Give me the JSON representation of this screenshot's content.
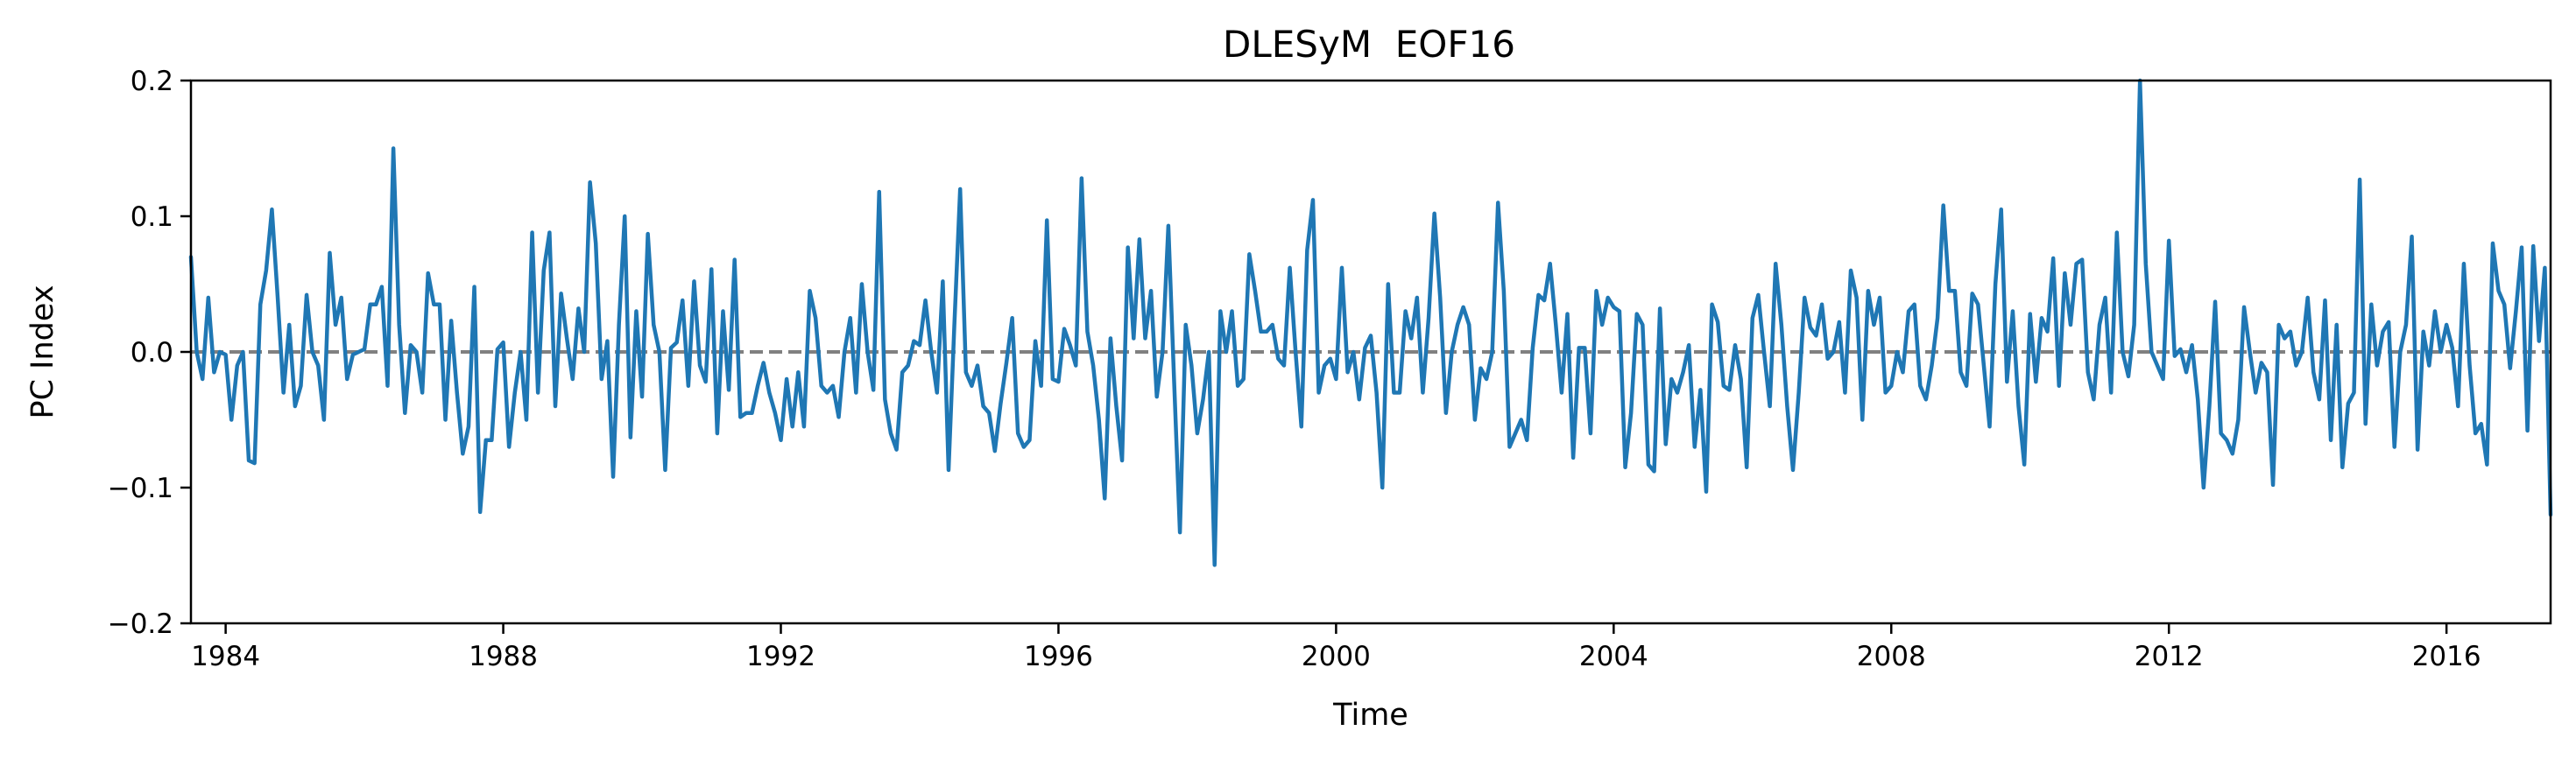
{
  "chart_data": {
    "type": "line",
    "title": "DLESyM  EOF16",
    "xlabel": "Time",
    "ylabel": "PC Index",
    "xlim": [
      1983.5,
      2017.5
    ],
    "ylim": [
      -0.2,
      0.2
    ],
    "x_ticks": [
      1984,
      1988,
      1992,
      1996,
      2000,
      2004,
      2008,
      2012,
      2016
    ],
    "y_ticks": [
      -0.2,
      -0.1,
      0.0,
      0.1,
      0.2
    ],
    "y_tick_labels": [
      "−0.2",
      "−0.1",
      "0.0",
      "0.1",
      "0.2"
    ],
    "grid": false,
    "reference_line": {
      "y": 0.0,
      "style": "dashed",
      "color": "#808080"
    },
    "series": [
      {
        "color": "#1f77b4",
        "x_start": 1983.5,
        "x_step": 0.0833333,
        "values": [
          0.07,
          0.0,
          -0.02,
          0.04,
          -0.015,
          0.0,
          -0.002,
          -0.05,
          -0.01,
          0.0,
          -0.08,
          -0.082,
          0.035,
          0.06,
          0.105,
          0.04,
          -0.03,
          0.02,
          -0.04,
          -0.025,
          0.042,
          0.0,
          -0.01,
          -0.05,
          0.073,
          0.02,
          0.04,
          -0.02,
          -0.002,
          0.0,
          0.002,
          0.035,
          0.035,
          0.048,
          -0.025,
          0.15,
          0.02,
          -0.045,
          0.005,
          0.0,
          -0.03,
          0.058,
          0.035,
          0.035,
          -0.05,
          0.023,
          -0.03,
          -0.075,
          -0.055,
          0.048,
          -0.118,
          -0.065,
          -0.065,
          0.002,
          0.007,
          -0.07,
          -0.03,
          0.0,
          -0.05,
          0.088,
          -0.03,
          0.06,
          0.088,
          -0.04,
          0.043,
          0.01,
          -0.02,
          0.032,
          0.0,
          0.125,
          0.08,
          -0.02,
          0.008,
          -0.092,
          0.02,
          0.1,
          -0.063,
          0.03,
          -0.033,
          0.087,
          0.02,
          0.0,
          -0.087,
          0.003,
          0.007,
          0.038,
          -0.025,
          0.052,
          -0.01,
          -0.022,
          0.061,
          -0.06,
          0.03,
          -0.028,
          0.068,
          -0.048,
          -0.045,
          -0.045,
          -0.025,
          -0.008,
          -0.03,
          -0.045,
          -0.065,
          -0.02,
          -0.055,
          -0.015,
          -0.055,
          0.045,
          0.025,
          -0.025,
          -0.03,
          -0.025,
          -0.048,
          0.0,
          0.025,
          -0.03,
          0.05,
          0.0,
          -0.028,
          0.118,
          -0.035,
          -0.06,
          -0.072,
          -0.015,
          -0.01,
          0.008,
          0.005,
          0.038,
          0.0,
          -0.03,
          0.052,
          -0.087,
          0.02,
          0.12,
          -0.015,
          -0.025,
          -0.01,
          -0.04,
          -0.045,
          -0.073,
          -0.038,
          -0.008,
          0.025,
          -0.06,
          -0.07,
          -0.065,
          0.008,
          -0.025,
          0.097,
          -0.02,
          -0.022,
          0.017,
          0.005,
          -0.01,
          0.128,
          0.015,
          -0.01,
          -0.05,
          -0.108,
          0.01,
          -0.04,
          -0.08,
          0.077,
          0.01,
          0.083,
          0.01,
          0.045,
          -0.033,
          0.0,
          0.093,
          -0.022,
          -0.133,
          0.02,
          -0.01,
          -0.06,
          -0.035,
          0.0,
          -0.157,
          0.03,
          0.0,
          0.03,
          -0.025,
          -0.02,
          0.072,
          0.045,
          0.015,
          0.015,
          0.02,
          -0.005,
          -0.01,
          0.062,
          0.0,
          -0.055,
          0.075,
          0.112,
          -0.03,
          -0.01,
          -0.005,
          -0.02,
          0.062,
          -0.015,
          0.0,
          -0.035,
          0.003,
          0.012,
          -0.03,
          -0.1,
          0.05,
          -0.03,
          -0.03,
          0.03,
          0.01,
          0.04,
          -0.03,
          0.025,
          0.102,
          0.04,
          -0.045,
          0.0,
          0.02,
          0.033,
          0.02,
          -0.05,
          -0.012,
          -0.02,
          0.0,
          0.11,
          0.045,
          -0.07,
          -0.06,
          -0.05,
          -0.065,
          0.003,
          0.042,
          0.038,
          0.065,
          0.02,
          -0.03,
          0.028,
          -0.078,
          0.003,
          0.003,
          -0.06,
          0.045,
          0.02,
          0.04,
          0.033,
          0.03,
          -0.085,
          -0.045,
          0.028,
          0.02,
          -0.083,
          -0.088,
          0.032,
          -0.068,
          -0.02,
          -0.03,
          -0.015,
          0.005,
          -0.07,
          -0.028,
          -0.103,
          0.035,
          0.022,
          -0.025,
          -0.028,
          0.005,
          -0.02,
          -0.085,
          0.025,
          0.042,
          0.0,
          -0.04,
          0.065,
          0.02,
          -0.04,
          -0.087,
          -0.03,
          0.04,
          0.018,
          0.012,
          0.035,
          -0.005,
          0.0,
          0.022,
          -0.03,
          0.06,
          0.04,
          -0.05,
          0.045,
          0.02,
          0.04,
          -0.03,
          -0.025,
          0.0,
          -0.015,
          0.03,
          0.035,
          -0.025,
          -0.035,
          -0.01,
          0.025,
          0.108,
          0.045,
          0.045,
          -0.015,
          -0.025,
          0.043,
          0.035,
          -0.01,
          -0.055,
          0.05,
          0.105,
          -0.022,
          0.03,
          -0.04,
          -0.083,
          0.028,
          -0.022,
          0.025,
          0.015,
          0.069,
          -0.025,
          0.058,
          0.02,
          0.065,
          0.068,
          -0.015,
          -0.035,
          0.02,
          0.04,
          -0.03,
          0.088,
          0.0,
          -0.018,
          0.02,
          0.2,
          0.065,
          0.0,
          -0.01,
          -0.02,
          0.082,
          -0.003,
          0.002,
          -0.015,
          0.005,
          -0.035,
          -0.1,
          -0.04,
          0.037,
          -0.06,
          -0.065,
          -0.075,
          -0.05,
          0.033,
          0.0,
          -0.03,
          -0.008,
          -0.015,
          -0.098,
          0.02,
          0.01,
          0.015,
          -0.01,
          0.0,
          0.04,
          -0.015,
          -0.035,
          0.038,
          -0.065,
          0.02,
          -0.085,
          -0.038,
          -0.03,
          0.127,
          -0.053,
          0.035,
          -0.01,
          0.015,
          0.022,
          -0.07,
          0.0,
          0.02,
          0.085,
          -0.072,
          0.015,
          -0.01,
          0.03,
          0.0,
          0.02,
          0.003,
          -0.04,
          0.065,
          -0.01,
          -0.06,
          -0.053,
          -0.083,
          0.08,
          0.045,
          0.035,
          -0.012,
          0.03,
          0.077,
          -0.058,
          0.078,
          0.008,
          0.062,
          -0.12
        ]
      }
    ]
  }
}
